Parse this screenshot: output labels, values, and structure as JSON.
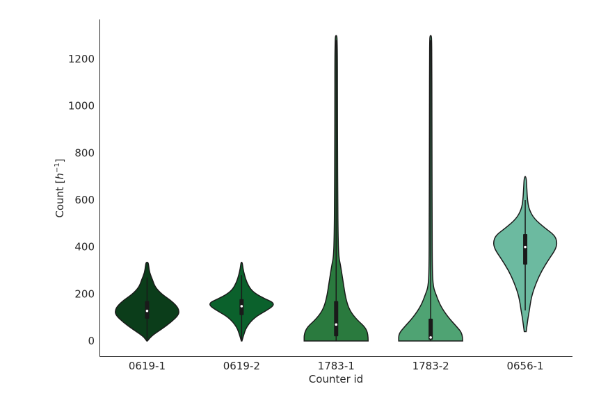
{
  "chart_data": {
    "type": "violin",
    "title": "",
    "xlabel": "Counter id",
    "ylabel": "Count [",
    "ylabel_unit_base": "h",
    "ylabel_unit_exp": "−1",
    "ylabel_close": "]",
    "ylim": [
      -60,
      1360
    ],
    "yticks": [
      0,
      200,
      400,
      600,
      800,
      1000,
      1200
    ],
    "ytick_labels": [
      "0",
      "200",
      "400",
      "600",
      "800",
      "1000",
      "1200"
    ],
    "grid": false,
    "categories": [
      "0619-1",
      "0619-2",
      "1783-1",
      "1783-2",
      "0656-1"
    ],
    "series": [
      {
        "category": "0619-1",
        "color": "#0b3d1a",
        "min": 0,
        "max": 335,
        "q1": 95,
        "median": 128,
        "q3": 170,
        "whisker_low": 5,
        "whisker_high": 270,
        "density": [
          [
            0,
            0.01
          ],
          [
            20,
            0.12
          ],
          [
            50,
            0.45
          ],
          [
            80,
            0.75
          ],
          [
            110,
            0.98
          ],
          [
            130,
            1.0
          ],
          [
            150,
            0.92
          ],
          [
            175,
            0.72
          ],
          [
            200,
            0.45
          ],
          [
            230,
            0.25
          ],
          [
            260,
            0.17
          ],
          [
            290,
            0.08
          ],
          [
            320,
            0.05
          ],
          [
            335,
            0.03
          ]
        ]
      },
      {
        "category": "0619-2",
        "color": "#0b612c",
        "min": 0,
        "max": 335,
        "q1": 110,
        "median": 148,
        "q3": 178,
        "whisker_low": 5,
        "whisker_high": 280,
        "density": [
          [
            0,
            0.01
          ],
          [
            20,
            0.05
          ],
          [
            60,
            0.15
          ],
          [
            100,
            0.4
          ],
          [
            130,
            0.78
          ],
          [
            150,
            1.0
          ],
          [
            165,
            0.98
          ],
          [
            180,
            0.72
          ],
          [
            200,
            0.45
          ],
          [
            220,
            0.28
          ],
          [
            250,
            0.16
          ],
          [
            280,
            0.09
          ],
          [
            310,
            0.04
          ],
          [
            335,
            0.02
          ]
        ]
      },
      {
        "category": "1783-1",
        "color": "#2a7a3e",
        "min": 0,
        "max": 1300,
        "q1": 20,
        "median": 70,
        "q3": 170,
        "whisker_low": 0,
        "whisker_high": 1280,
        "density": [
          [
            0,
            1.0
          ],
          [
            30,
            1.0
          ],
          [
            60,
            0.9
          ],
          [
            90,
            0.65
          ],
          [
            130,
            0.42
          ],
          [
            180,
            0.3
          ],
          [
            250,
            0.22
          ],
          [
            320,
            0.14
          ],
          [
            360,
            0.08
          ],
          [
            450,
            0.06
          ],
          [
            600,
            0.05
          ],
          [
            800,
            0.045
          ],
          [
            1000,
            0.04
          ],
          [
            1200,
            0.04
          ],
          [
            1280,
            0.03
          ],
          [
            1300,
            0.02
          ]
        ]
      },
      {
        "category": "1783-2",
        "color": "#4fa373",
        "min": 0,
        "max": 1300,
        "q1": 5,
        "median": 15,
        "q3": 95,
        "whisker_low": 0,
        "whisker_high": 1280,
        "density": [
          [
            0,
            1.0
          ],
          [
            30,
            1.0
          ],
          [
            60,
            0.82
          ],
          [
            100,
            0.55
          ],
          [
            150,
            0.3
          ],
          [
            200,
            0.16
          ],
          [
            230,
            0.08
          ],
          [
            300,
            0.05
          ],
          [
            500,
            0.045
          ],
          [
            800,
            0.04
          ],
          [
            1000,
            0.038
          ],
          [
            1200,
            0.035
          ],
          [
            1280,
            0.03
          ],
          [
            1300,
            0.02
          ]
        ]
      },
      {
        "category": "0656-1",
        "color": "#6cbaa0",
        "min": 40,
        "max": 700,
        "q1": 325,
        "median": 400,
        "q3": 455,
        "whisker_low": 130,
        "whisker_high": 600,
        "density": [
          [
            40,
            0.03
          ],
          [
            70,
            0.06
          ],
          [
            100,
            0.09
          ],
          [
            130,
            0.13
          ],
          [
            160,
            0.16
          ],
          [
            200,
            0.22
          ],
          [
            250,
            0.35
          ],
          [
            300,
            0.52
          ],
          [
            350,
            0.75
          ],
          [
            390,
            0.95
          ],
          [
            420,
            1.0
          ],
          [
            450,
            0.92
          ],
          [
            480,
            0.62
          ],
          [
            520,
            0.28
          ],
          [
            560,
            0.12
          ],
          [
            600,
            0.07
          ],
          [
            650,
            0.05
          ],
          [
            700,
            0.03
          ]
        ]
      }
    ]
  }
}
